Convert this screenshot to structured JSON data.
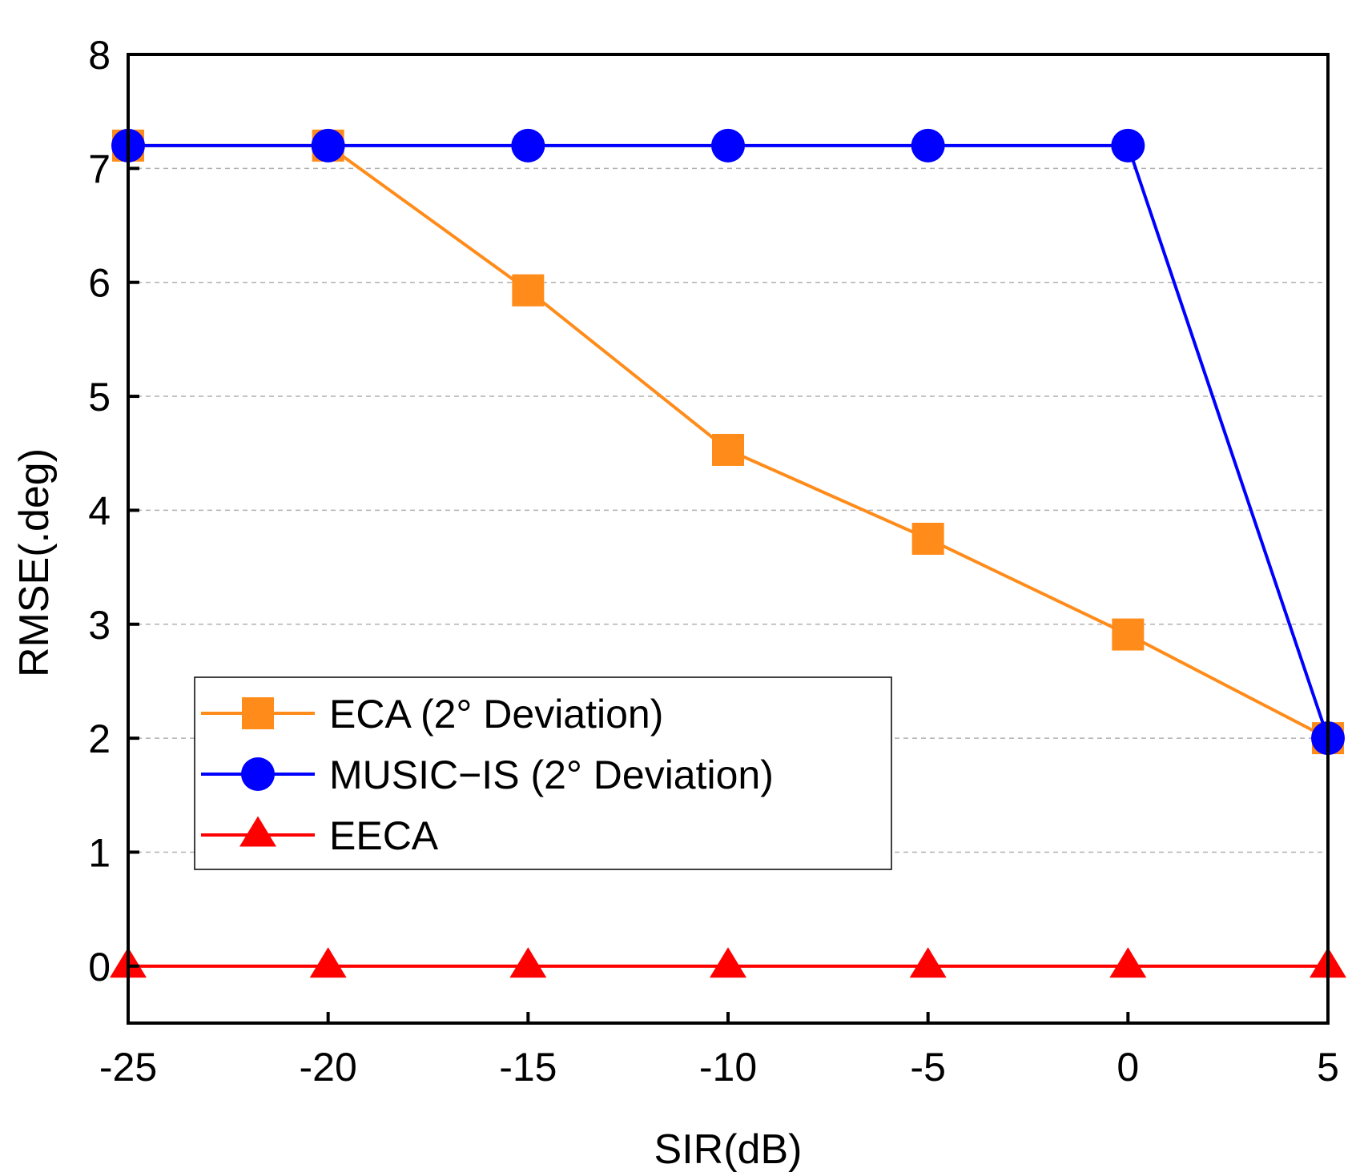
{
  "chart_data": {
    "type": "line",
    "title": "",
    "xlabel": "SIR(dB)",
    "ylabel": "RMSE(.deg)",
    "x": [
      -25,
      -20,
      -15,
      -10,
      -5,
      0,
      5
    ],
    "xticks": [
      -25,
      -20,
      -15,
      -10,
      -5,
      0,
      5
    ],
    "yticks": [
      0,
      1,
      2,
      3,
      4,
      5,
      6,
      7,
      8
    ],
    "xlim": [
      -25,
      5
    ],
    "ylim": [
      -0.5,
      8
    ],
    "grid": "horizontal dashed",
    "legend_position": "lower-left",
    "series": [
      {
        "name": "ECA (2° Deviation)",
        "color": "#FF8C1A",
        "marker": "square",
        "values": [
          7.2,
          7.2,
          5.93,
          4.53,
          3.75,
          2.91,
          2.0
        ]
      },
      {
        "name": "MUSIC−IS (2° Deviation)",
        "color": "#0000FF",
        "marker": "circle",
        "values": [
          7.2,
          7.2,
          7.2,
          7.2,
          7.2,
          7.2,
          2.0
        ]
      },
      {
        "name": "EECA",
        "color": "#FF0000",
        "marker": "triangle",
        "values": [
          0,
          0,
          0,
          0,
          0,
          0,
          0
        ]
      }
    ]
  }
}
